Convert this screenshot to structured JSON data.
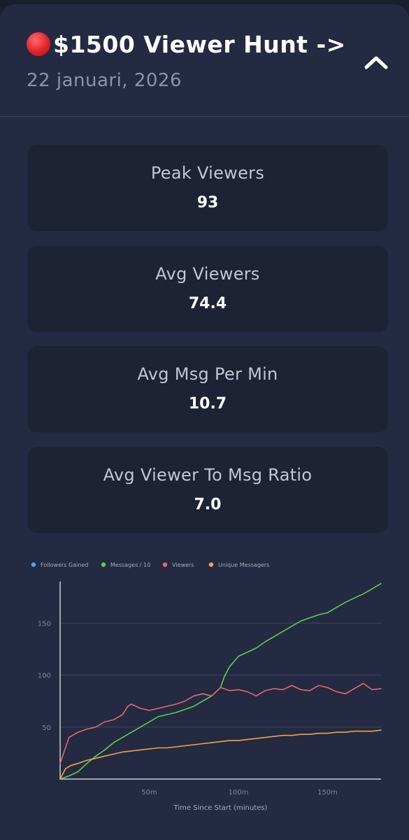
{
  "header": {
    "title": "$1500 Viewer Hunt ->",
    "date": "22 januari, 2026"
  },
  "stats": [
    {
      "label": "Peak Viewers",
      "value": "93"
    },
    {
      "label": "Avg Viewers",
      "value": "74.4"
    },
    {
      "label": "Avg Msg Per Min",
      "value": "10.7"
    },
    {
      "label": "Avg Viewer To Msg Ratio",
      "value": "7.0"
    }
  ],
  "colors": {
    "background": "#232a41",
    "panel": "#1d2235",
    "followers": "#4aa8f0",
    "messages": "#5ccf4a",
    "viewers": "#e8676a",
    "unique": "#f0a44a"
  },
  "chart_data": {
    "type": "line",
    "xlabel": "Time Since Start (minutes)",
    "ylabel": "",
    "xlim": [
      0,
      180
    ],
    "ylim": [
      0,
      190
    ],
    "grid": true,
    "legend_position": "top-left",
    "x_ticks": [
      50,
      100,
      150
    ],
    "x_tick_labels": [
      "50m",
      "100m",
      "150m"
    ],
    "y_ticks": [
      50,
      100,
      150
    ],
    "y_tick_labels": [
      "50",
      "100",
      "150"
    ],
    "series": [
      {
        "name": "Followers Gained",
        "color": "#4aa8f0",
        "x": [],
        "y": []
      },
      {
        "name": "Messages / 10",
        "color": "#5ccf4a",
        "x": [
          0,
          5,
          10,
          15,
          20,
          25,
          30,
          35,
          40,
          45,
          50,
          55,
          60,
          65,
          70,
          75,
          80,
          85,
          90,
          92,
          95,
          100,
          105,
          110,
          115,
          120,
          125,
          130,
          135,
          140,
          145,
          150,
          155,
          160,
          165,
          170,
          175,
          180
        ],
        "y": [
          0,
          3,
          7,
          15,
          22,
          28,
          35,
          40,
          45,
          50,
          55,
          60,
          62,
          64,
          67,
          70,
          75,
          80,
          88,
          98,
          108,
          118,
          122,
          126,
          132,
          137,
          142,
          147,
          152,
          155,
          158,
          160,
          165,
          170,
          174,
          178,
          183,
          188
        ]
      },
      {
        "name": "Viewers",
        "color": "#e8676a",
        "x": [
          0,
          2,
          5,
          8,
          10,
          15,
          20,
          25,
          30,
          35,
          38,
          40,
          45,
          50,
          55,
          60,
          65,
          70,
          75,
          80,
          85,
          90,
          95,
          100,
          105,
          110,
          115,
          120,
          125,
          130,
          135,
          140,
          145,
          150,
          155,
          160,
          165,
          170,
          175,
          180
        ],
        "y": [
          15,
          25,
          40,
          43,
          45,
          48,
          50,
          55,
          57,
          62,
          70,
          72,
          68,
          66,
          68,
          70,
          72,
          75,
          80,
          82,
          80,
          88,
          85,
          86,
          84,
          80,
          85,
          87,
          86,
          90,
          86,
          85,
          90,
          88,
          84,
          82,
          87,
          92,
          86,
          87
        ]
      },
      {
        "name": "Unique Messagers",
        "color": "#f0a44a",
        "x": [
          0,
          3,
          6,
          10,
          15,
          20,
          25,
          30,
          35,
          40,
          45,
          50,
          55,
          60,
          65,
          70,
          75,
          80,
          85,
          90,
          95,
          100,
          105,
          110,
          115,
          120,
          125,
          130,
          135,
          140,
          145,
          150,
          155,
          160,
          165,
          170,
          175,
          180
        ],
        "y": [
          0,
          10,
          13,
          15,
          18,
          20,
          22,
          24,
          26,
          27,
          28,
          29,
          30,
          30,
          31,
          32,
          33,
          34,
          35,
          36,
          37,
          37,
          38,
          39,
          40,
          41,
          42,
          42,
          43,
          43,
          44,
          44,
          45,
          45,
          46,
          46,
          46,
          47
        ]
      }
    ]
  }
}
